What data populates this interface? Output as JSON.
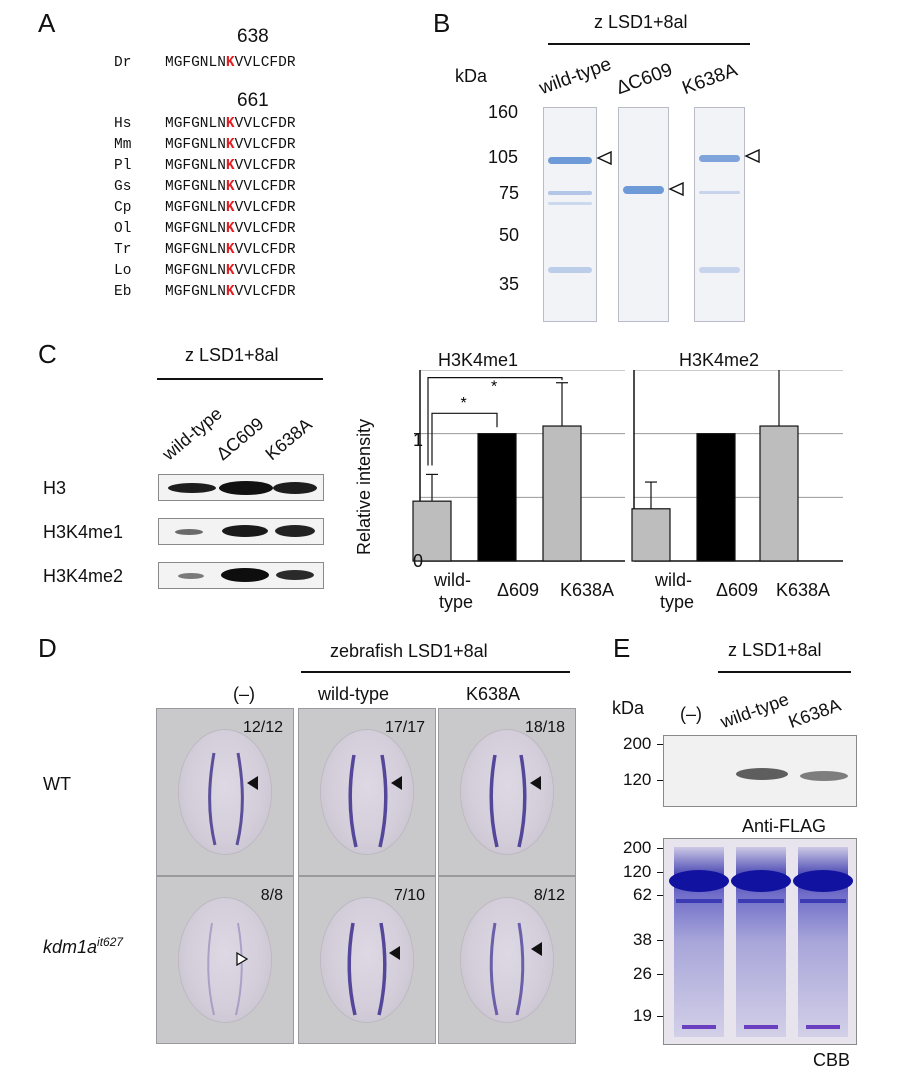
{
  "panels": {
    "A": "A",
    "B": "B",
    "C": "C",
    "D": "D",
    "E": "E"
  },
  "A": {
    "pos_dr": "638",
    "pos_others": "661",
    "rows": [
      {
        "sp": "Dr",
        "pre": "MGFGNLN",
        "k": "K",
        "post": "VVLCFDR"
      },
      {
        "sp": "Hs",
        "pre": "MGFGNLN",
        "k": "K",
        "post": "VVLCFDR"
      },
      {
        "sp": "Mm",
        "pre": "MGFGNLN",
        "k": "K",
        "post": "VVLCFDR"
      },
      {
        "sp": "Pl",
        "pre": "MGFGNLN",
        "k": "K",
        "post": "VVLCFDR"
      },
      {
        "sp": "Gs",
        "pre": "MGFGNLN",
        "k": "K",
        "post": "VVLCFDR"
      },
      {
        "sp": "Cp",
        "pre": "MGFGNLN",
        "k": "K",
        "post": "VVLCFDR"
      },
      {
        "sp": "Ol",
        "pre": "MGFGNLN",
        "k": "K",
        "post": "VVLCFDR"
      },
      {
        "sp": "Tr",
        "pre": "MGFGNLN",
        "k": "K",
        "post": "VVLCFDR"
      },
      {
        "sp": "Lo",
        "pre": "MGFGNLN",
        "k": "K",
        "post": "VVLCFDR"
      },
      {
        "sp": "Eb",
        "pre": "MGFGNLN",
        "k": "K",
        "post": "VVLCFDR"
      }
    ]
  },
  "B": {
    "header": "z LSD1+8al",
    "kda": "kDa",
    "lanes": [
      "wild-type",
      "ΔC609",
      "K638A"
    ],
    "markers": [
      "160",
      "105",
      "75",
      "50",
      "35"
    ]
  },
  "C": {
    "header": "z LSD1+8al",
    "lanes": [
      "wild-type",
      "ΔC609",
      "K638A"
    ],
    "rows": [
      "H3",
      "H3K4me1",
      "H3K4me2"
    ],
    "ylabel": "Relative intensity",
    "star": "*",
    "chart_data": [
      {
        "type": "bar",
        "title": "H3K4me1",
        "categories": [
          "wild-type",
          "Δ609",
          "K638A"
        ],
        "values": [
          0.47,
          1.0,
          1.06
        ],
        "errors": [
          0.21,
          0,
          0.34
        ],
        "ylim": [
          0,
          1.5
        ],
        "yticks": [
          "0",
          "1"
        ],
        "colors": [
          "#bdbdbd",
          "#000000",
          "#bdbdbd"
        ],
        "significance": [
          "*",
          "*"
        ]
      },
      {
        "type": "bar",
        "title": "H3K4me2",
        "categories": [
          "wild-type",
          "Δ609",
          "K638A"
        ],
        "values": [
          0.41,
          1.0,
          1.06
        ],
        "errors": [
          0.21,
          0,
          0.46
        ],
        "ylim": [
          0,
          1.5
        ],
        "colors": [
          "#bdbdbd",
          "#000000",
          "#bdbdbd"
        ]
      }
    ],
    "xlabels": {
      "wt1": "wild-",
      "wt2": "type",
      "d609": "Δ609",
      "k638a": "K638A"
    }
  },
  "D": {
    "header": "zebrafish LSD1+8al",
    "cols": [
      "(–)",
      "wild-type",
      "K638A"
    ],
    "rows": [
      "WT",
      "kdm1a"
    ],
    "row2_sup": "it627",
    "counts": [
      "12/12",
      "17/17",
      "18/18",
      "8/8",
      "7/10",
      "8/12"
    ]
  },
  "E": {
    "header": "z LSD1+8al",
    "kda": "kDa",
    "lanes": [
      "(–)",
      "wild-type",
      "K638A"
    ],
    "top_markers": [
      "200",
      "120"
    ],
    "bottom_markers": [
      "200",
      "120",
      "62",
      "38",
      "26",
      "19"
    ],
    "anti": "Anti-FLAG",
    "cbb": "CBB"
  }
}
